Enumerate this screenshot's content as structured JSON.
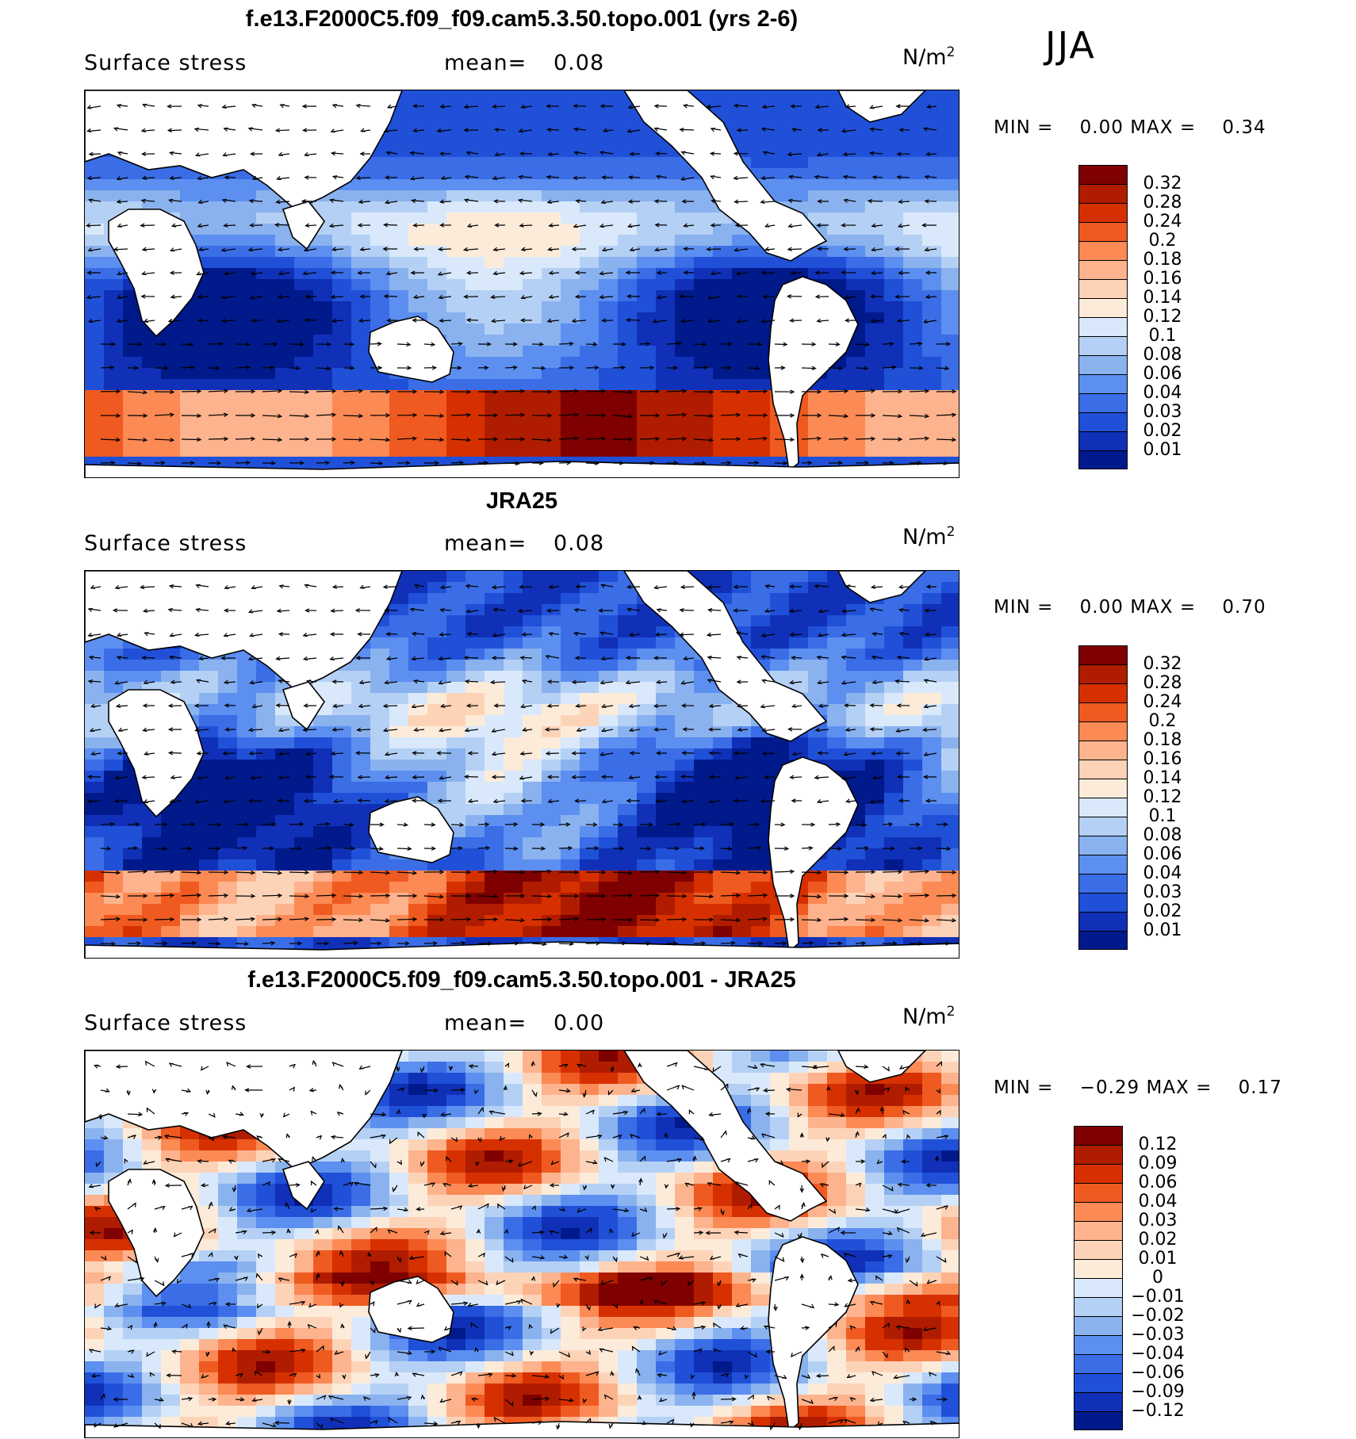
{
  "season": "JJA",
  "chart_data": [
    {
      "type": "heatmap",
      "title": "f.e13.F2000C5.f09_f09.cam5.3.50.topo.001 (yrs 2-6)",
      "field_label": "Surface stress",
      "mean_label": "mean=",
      "mean_value": "0.08",
      "units": "N/m",
      "units_exp": "2",
      "min_label": "MIN =",
      "min_value": "0.00",
      "max_label": "MAX =",
      "max_value": "0.34",
      "colorbar_levels": [
        "0.32",
        "0.28",
        "0.24",
        "0.2",
        "0.18",
        "0.16",
        "0.14",
        "0.12",
        "0.1",
        "0.08",
        "0.06",
        "0.04",
        "0.03",
        "0.02",
        "0.01"
      ],
      "colorbar_colors": [
        "#7f0000",
        "#b01c00",
        "#d73000",
        "#ef5a20",
        "#fb8a55",
        "#fdb38d",
        "#fdd3b8",
        "#fdebd9",
        "#d9e9fb",
        "#b4d0f5",
        "#8ab2ee",
        "#5c8ff0",
        "#3a6de6",
        "#2050d8",
        "#1030b8",
        "#001a8c"
      ],
      "pattern": "model"
    },
    {
      "type": "heatmap",
      "title": "JRA25",
      "field_label": "Surface stress",
      "mean_label": "mean=",
      "mean_value": "0.08",
      "units": "N/m",
      "units_exp": "2",
      "min_label": "MIN =",
      "min_value": "0.00",
      "max_label": "MAX =",
      "max_value": "0.70",
      "colorbar_levels": [
        "0.32",
        "0.28",
        "0.24",
        "0.2",
        "0.18",
        "0.16",
        "0.14",
        "0.12",
        "0.1",
        "0.08",
        "0.06",
        "0.04",
        "0.03",
        "0.02",
        "0.01"
      ],
      "colorbar_colors": [
        "#7f0000",
        "#b01c00",
        "#d73000",
        "#ef5a20",
        "#fb8a55",
        "#fdb38d",
        "#fdd3b8",
        "#fdebd9",
        "#d9e9fb",
        "#b4d0f5",
        "#8ab2ee",
        "#5c8ff0",
        "#3a6de6",
        "#2050d8",
        "#1030b8",
        "#001a8c"
      ],
      "pattern": "obs"
    },
    {
      "type": "heatmap",
      "title": "f.e13.F2000C5.f09_f09.cam5.3.50.topo.001 - JRA25",
      "field_label": "Surface stress",
      "mean_label": "mean=",
      "mean_value": "0.00",
      "units": "N/m",
      "units_exp": "2",
      "min_label": "MIN =",
      "min_value": "−0.29",
      "max_label": "MAX =",
      "max_value": "0.17",
      "colorbar_levels": [
        "0.12",
        "0.09",
        "0.06",
        "0.04",
        "0.03",
        "0.02",
        "0.01",
        "0",
        "−0.01",
        "−0.02",
        "−0.03",
        "−0.04",
        "−0.06",
        "−0.09",
        "−0.12"
      ],
      "colorbar_colors": [
        "#7f0000",
        "#b01c00",
        "#d73000",
        "#ef5a20",
        "#fb8a55",
        "#fdb38d",
        "#fdd3b8",
        "#fdebd9",
        "#d9e9fb",
        "#b4d0f5",
        "#8ab2ee",
        "#5c8ff0",
        "#3a6de6",
        "#2050d8",
        "#1030b8",
        "#001a8c"
      ],
      "pattern": "diff"
    }
  ]
}
